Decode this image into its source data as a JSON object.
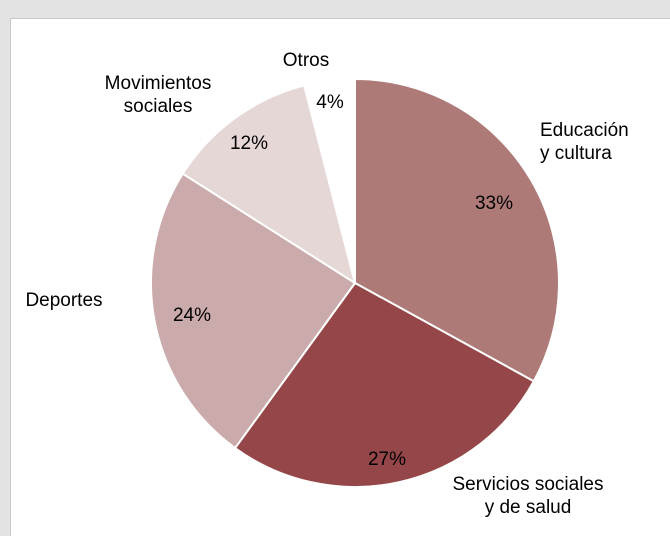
{
  "chart_data": {
    "type": "pie",
    "slices": [
      {
        "label_lines": [
          "Educación",
          "y cultura"
        ],
        "value": 33,
        "value_label": "33%",
        "color": "#ad7a78"
      },
      {
        "label_lines": [
          "Servicios sociales",
          "y de salud"
        ],
        "value": 27,
        "value_label": "27%",
        "color": "#954648"
      },
      {
        "label_lines": [
          "Deportes"
        ],
        "value": 24,
        "value_label": "24%",
        "color": "#caaaaa"
      },
      {
        "label_lines": [
          "Movimientos",
          "sociales"
        ],
        "value": 12,
        "value_label": "12%",
        "color": "#e6d7d7"
      },
      {
        "label_lines": [
          "Otros"
        ],
        "value": 4,
        "value_label": "4%",
        "color": "#ffffff"
      }
    ],
    "start_angle_deg": 0,
    "direction": "clockwise",
    "legend": "none",
    "slice_border_color": "#ffffff"
  }
}
